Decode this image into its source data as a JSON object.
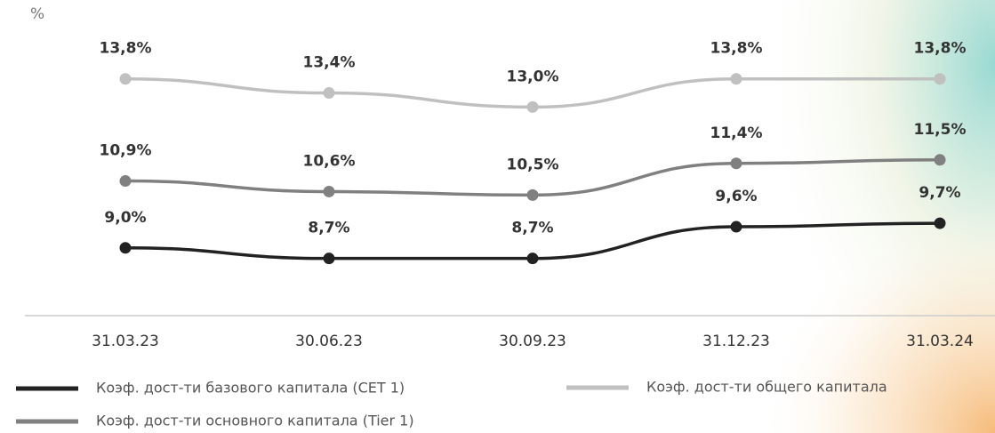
{
  "chart_data": {
    "type": "line",
    "y_label": "%",
    "categories": [
      "31.03.23",
      "30.06.23",
      "30.09.23",
      "31.12.23",
      "31.03.24"
    ],
    "series": [
      {
        "name": "Коэф. дост-ти базового капитала (CET 1)",
        "color": "#222222",
        "values": [
          9.0,
          8.7,
          8.7,
          9.6,
          9.7
        ],
        "value_labels": [
          "9,0%",
          "8,7%",
          "8,7%",
          "9,6%",
          "9,7%"
        ]
      },
      {
        "name": "Коэф. дост-ти основного капитала (Tier 1)",
        "color": "#808080",
        "values": [
          10.9,
          10.6,
          10.5,
          11.4,
          11.5
        ],
        "value_labels": [
          "10,9%",
          "10,6%",
          "10,5%",
          "11,4%",
          "11,5%"
        ]
      },
      {
        "name": "Коэф. дост-ти общего капитала",
        "color": "#c0c0c0",
        "values": [
          13.8,
          13.4,
          13.0,
          13.8,
          13.8
        ],
        "value_labels": [
          "13,8%",
          "13,4%",
          "13,0%",
          "13,8%",
          "13,8%"
        ]
      }
    ],
    "ylim": [
      7,
      14.5
    ]
  }
}
